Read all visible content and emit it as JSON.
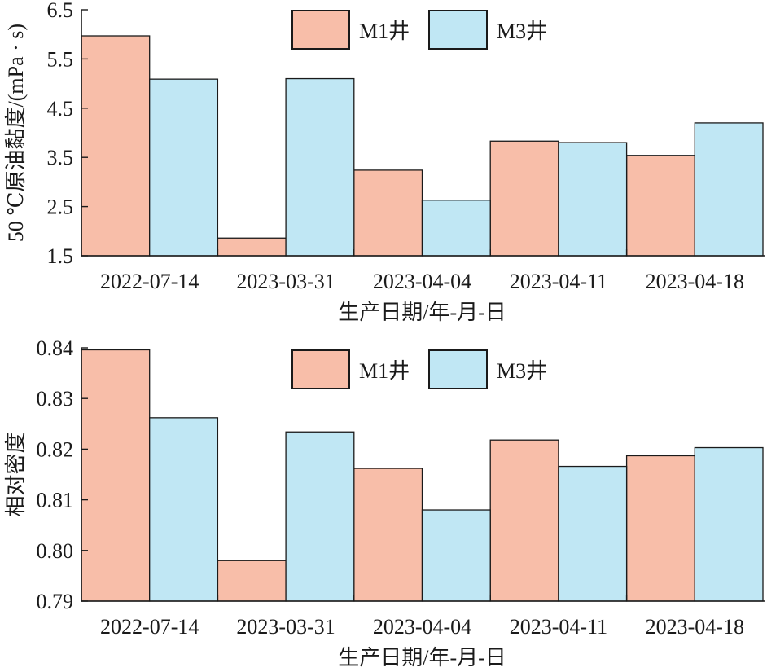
{
  "colors": {
    "M1": "#f8bea9",
    "M3": "#c0e7f4",
    "stroke": "#1a1a1a"
  },
  "chart_data": [
    {
      "type": "bar",
      "categories": [
        "2022-07-14",
        "2023-03-31",
        "2023-04-04",
        "2023-04-11",
        "2023-04-18"
      ],
      "series": [
        {
          "name": "M1井",
          "values": [
            5.97,
            1.86,
            3.24,
            3.83,
            3.54
          ]
        },
        {
          "name": "M3井",
          "values": [
            5.09,
            5.1,
            2.63,
            3.8,
            4.2
          ]
        }
      ],
      "xlabel": "生产日期/年-月-日",
      "ylabel": "50 ℃原油黏度/(mPa · s)",
      "ylim": [
        1.5,
        6.5
      ],
      "yticks": [
        "1.5",
        "2.5",
        "3.5",
        "4.5",
        "5.5",
        "6.5"
      ],
      "legend_position": "top-center",
      "grid": false
    },
    {
      "type": "bar",
      "categories": [
        "2022-07-14",
        "2023-03-31",
        "2023-04-04",
        "2023-04-11",
        "2023-04-18"
      ],
      "series": [
        {
          "name": "M1井",
          "values": [
            0.8396,
            0.798,
            0.8162,
            0.8218,
            0.8187
          ]
        },
        {
          "name": "M3井",
          "values": [
            0.8262,
            0.8234,
            0.808,
            0.8166,
            0.8203
          ]
        }
      ],
      "xlabel": "生产日期/年-月-日",
      "ylabel": "相对密度",
      "ylim": [
        0.79,
        0.84
      ],
      "yticks": [
        "0.79",
        "0.80",
        "0.81",
        "0.82",
        "0.83",
        "0.84"
      ],
      "legend_position": "top-center",
      "grid": false
    }
  ]
}
